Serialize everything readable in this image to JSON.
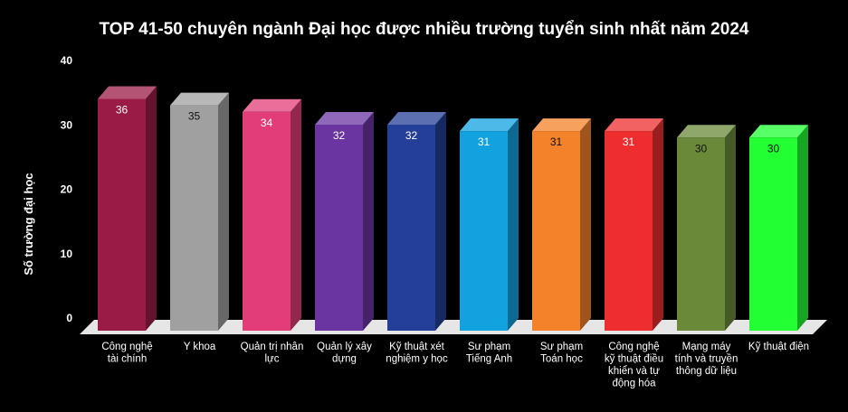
{
  "chart_data": {
    "type": "bar",
    "title": "TOP 41-50 chuyên ngành Đại học được nhiều trường tuyển sinh nhất năm 2024",
    "xlabel": "",
    "ylabel": "Số trường đại học",
    "ylim": [
      0,
      40
    ],
    "yticks": [
      0,
      10,
      20,
      30,
      40
    ],
    "grid": false,
    "categories": [
      [
        "Công nghệ",
        "tài chính"
      ],
      [
        "Y khoa"
      ],
      [
        "Quản trị nhân",
        "lực"
      ],
      [
        "Quản lý xây",
        "dựng"
      ],
      [
        "Kỹ thuật xét",
        "nghiệm y học"
      ],
      [
        "Sư phạm",
        "Tiếng Anh"
      ],
      [
        "Sư phạm",
        "Toán học"
      ],
      [
        "Công nghệ",
        "kỹ thuật điều",
        "khiển và tự",
        "động hóa"
      ],
      [
        "Mạng máy",
        "tính và truyền",
        "thông dữ liệu"
      ],
      [
        "Kỹ thuật điện"
      ]
    ],
    "values": [
      36,
      35,
      34,
      32,
      32,
      31,
      31,
      31,
      30,
      30
    ],
    "colors": [
      "#9b1b47",
      "#a0a0a0",
      "#e23d78",
      "#6a35a1",
      "#243f97",
      "#12a2e0",
      "#f4822a",
      "#ee2e2e",
      "#6a8a3a",
      "#22ff33"
    ],
    "label_colors": [
      "#fff",
      "#111",
      "#fff",
      "#fff",
      "#fff",
      "#fff",
      "#111",
      "#fff",
      "#111",
      "#111"
    ]
  }
}
